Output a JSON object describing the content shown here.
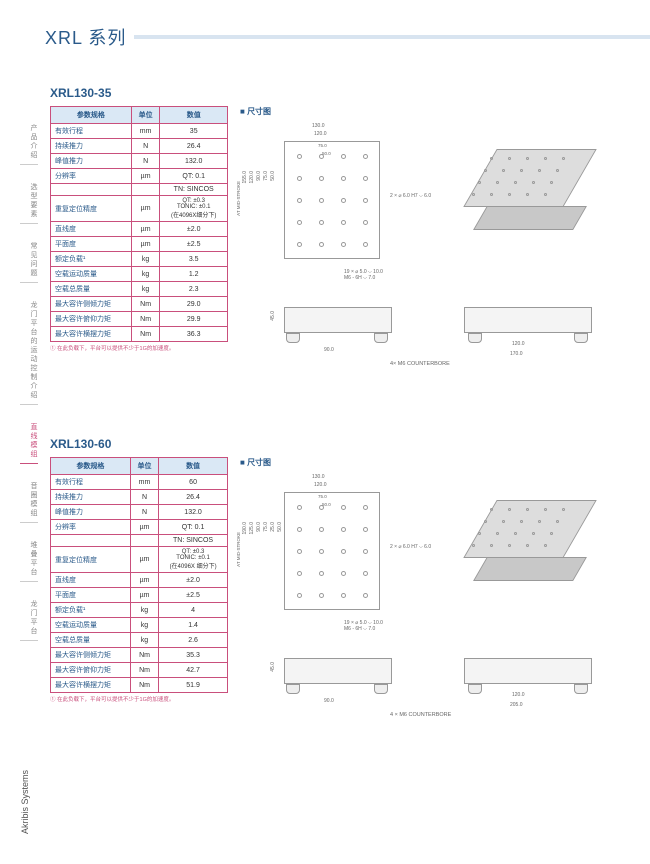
{
  "header": {
    "title": "XRL 系列"
  },
  "sidebar": {
    "items": [
      {
        "label": "产品介绍"
      },
      {
        "label": "选型要素"
      },
      {
        "label": "常见问题"
      },
      {
        "label": "龙门平台的运动控制介绍"
      },
      {
        "label": "直线模组",
        "active": true
      },
      {
        "label": "音圈模组"
      },
      {
        "label": "堆叠平台"
      },
      {
        "label": "龙门平台"
      }
    ]
  },
  "brand": "Akribis Systems",
  "products": [
    {
      "title": "XRL130-35",
      "dim_label": "尺寸图",
      "table": {
        "headers": [
          "参数规格",
          "单位",
          "数值"
        ],
        "rows": [
          [
            "有效行程",
            "mm",
            "35"
          ],
          [
            "持续推力",
            "N",
            "26.4"
          ],
          [
            "峰值推力",
            "N",
            "132.0"
          ],
          [
            "分辨率",
            "µm",
            "QT: 0.1"
          ],
          [
            "",
            "",
            "TN: SINCOS"
          ],
          [
            "重复定位精度",
            "µm",
            "QT: ±0.3\nTONIC: ±0.1\n(在4096X细分下)"
          ],
          [
            "直线度",
            "µm",
            "±2.0"
          ],
          [
            "平面度",
            "µm",
            "±2.5"
          ],
          [
            "额定负载¹",
            "kg",
            "3.5"
          ],
          [
            "空载运动质量",
            "kg",
            "1.2"
          ],
          [
            "空载总质量",
            "kg",
            "2.3"
          ],
          [
            "最大容许侧倾力矩",
            "Nm",
            "29.0"
          ],
          [
            "最大容许俯仰力矩",
            "Nm",
            "29.9"
          ],
          [
            "最大容许横摆力矩",
            "Nm",
            "36.3"
          ]
        ]
      },
      "footnote": "① 在此负载下，平台可以提供不少于1G的加速度。",
      "dims": {
        "top_w": "130.0",
        "top_w2": "120.0",
        "top_w3": "75.0",
        "top_w4": "50.0",
        "side_h": "155.0",
        "stroke_label": "AT MID-STROKE",
        "side_h2": "120.0",
        "side_h3": "90.0",
        "side_h4": "75.0",
        "side_h5": "50.0",
        "thread1": "2 × ⌀ 6.0 H7 ⌵ 6.0",
        "thread2": "19 × ⌀ 5.0 ⌵ 10.0\nM6 - 6H ⌵ 7.0",
        "counterbore": "4× M6 COUNTERBORE",
        "depth": "45.0",
        "foot_w": "90.0",
        "iso_w": "120.0",
        "iso_l": "170.0"
      }
    },
    {
      "title": "XRL130-60",
      "dim_label": "尺寸图",
      "table": {
        "headers": [
          "参数规格",
          "单位",
          "数值"
        ],
        "rows": [
          [
            "有效行程",
            "mm",
            "60"
          ],
          [
            "持续推力",
            "N",
            "26.4"
          ],
          [
            "峰值推力",
            "N",
            "132.0"
          ],
          [
            "分辨率",
            "µm",
            "QT: 0.1"
          ],
          [
            "",
            "",
            "TN: SINCOS"
          ],
          [
            "重复定位精度",
            "µm",
            "QT: ±0.3\nTONIC: ±0.1\n(在4096X 细分下)"
          ],
          [
            "直线度",
            "µm",
            "±2.0"
          ],
          [
            "平面度",
            "µm",
            "±2.5"
          ],
          [
            "额定负载¹",
            "kg",
            "4"
          ],
          [
            "空载运动质量",
            "kg",
            "1.4"
          ],
          [
            "空载总质量",
            "kg",
            "2.6"
          ],
          [
            "最大容许侧倾力矩",
            "Nm",
            "35.3"
          ],
          [
            "最大容许俯仰力矩",
            "Nm",
            "42.7"
          ],
          [
            "最大容许横摆力矩",
            "Nm",
            "51.9"
          ]
        ]
      },
      "footnote": "① 在此负载下，平台可以提供不少于1G的加速度。",
      "dims": {
        "top_w": "130.0",
        "top_w2": "120.0",
        "top_w3": "75.0",
        "top_w4": "50.0",
        "side_h": "190.0",
        "stroke_label": "AT MID-STROKE",
        "side_h2": "125.0",
        "side_h3": "90.0",
        "side_h4": "75.0",
        "side_h5": "25.0",
        "side_h6": "50.0",
        "thread1": "2 × ⌀ 6.0 H7 ⌵ 6.0",
        "thread2": "19 × ⌀ 5.0 ⌵ 10.0\nM6 - 6H ⌵ 7.0",
        "counterbore": "4 × M6 COUNTERBORE",
        "depth": "45.0",
        "foot_w": "90.0",
        "iso_w": "120.0",
        "iso_l": "205.0"
      }
    }
  ]
}
